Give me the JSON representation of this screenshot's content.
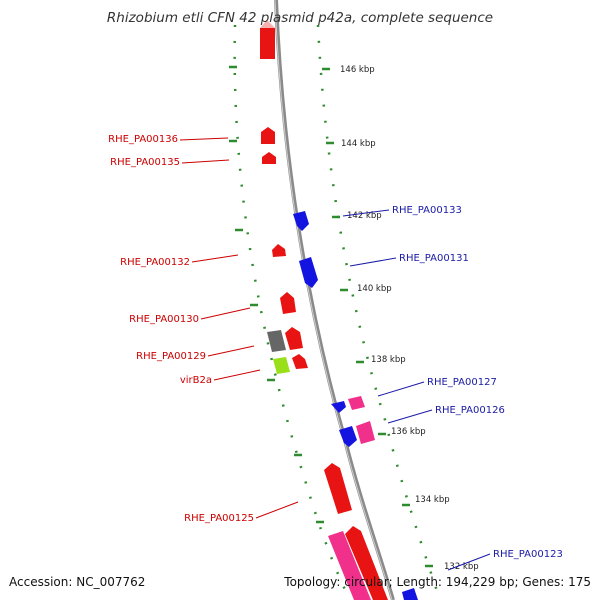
{
  "title": "Rhizobium etli CFN 42 plasmid p42a, complete sequence",
  "accession": "Accession: NC_007762",
  "summary": "Topology: circular; Length: 194,229 bp; Genes: 175",
  "colors": {
    "backbone": "#8a8a8a",
    "tick": "#2e8b2e",
    "forward": "#e81414",
    "reverse": "#1414e0",
    "pink": "#f0308a",
    "gray": "#666666",
    "green": "#99e01a",
    "pale": "#f7b0b0",
    "label_forward": "#cc0000",
    "label_reverse": "#1a1aa8"
  },
  "ticks": [
    "146 kbp",
    "144 kbp",
    "142 kbp",
    "140 kbp",
    "138 kbp",
    "136 kbp",
    "134 kbp",
    "132 kbp"
  ],
  "gene_labels": [
    {
      "text": "RHE_PA00136",
      "strand": "forward"
    },
    {
      "text": "RHE_PA00135",
      "strand": "forward"
    },
    {
      "text": "RHE_PA00132",
      "strand": "forward"
    },
    {
      "text": "RHE_PA00130",
      "strand": "forward"
    },
    {
      "text": "RHE_PA00129",
      "strand": "forward"
    },
    {
      "text": "virB2a",
      "strand": "forward"
    },
    {
      "text": "RHE_PA00125",
      "strand": "forward"
    },
    {
      "text": "RHE_PA00133",
      "strand": "reverse"
    },
    {
      "text": "RHE_PA00131",
      "strand": "reverse"
    },
    {
      "text": "RHE_PA00127",
      "strand": "reverse"
    },
    {
      "text": "RHE_PA00126",
      "strand": "reverse"
    },
    {
      "text": "RHE_PA00123",
      "strand": "reverse"
    }
  ]
}
